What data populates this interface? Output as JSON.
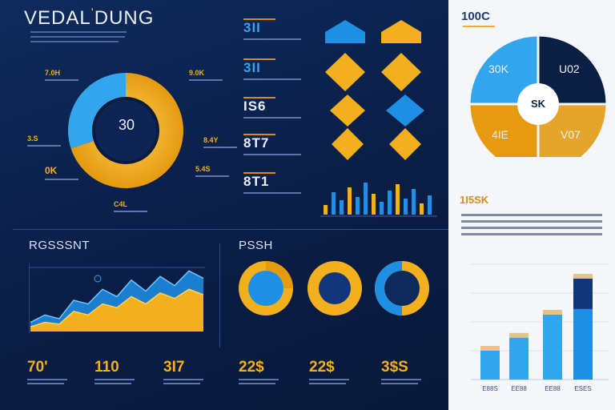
{
  "title": {
    "text": "VEDAL",
    "accent": "'",
    "text2": "DUNG"
  },
  "donut_main": {
    "center_value": "30",
    "labels": [
      "7.0H",
      "9.0K",
      "3.S",
      "0K",
      "C4L",
      "5.4S",
      "8.4Y"
    ]
  },
  "stats_col": {
    "values": [
      "3II",
      "3II",
      "IS6",
      "8T7",
      "8T1"
    ]
  },
  "progress_chart": {
    "title": "RGSSSNT",
    "bottom_values": [
      "70'",
      "110",
      "3I7",
      "22$",
      "22$",
      "3$S"
    ]
  },
  "ring_panel": {
    "title": "PSSH"
  },
  "right_panel": {
    "top_label": "100C",
    "pie_center": "SK",
    "pie_labels": [
      "30K",
      "U02",
      "4IE",
      "V07"
    ],
    "side_value": "1I5SK",
    "bar_labels": [
      "E88S",
      "EE88",
      "EE88",
      "ESES"
    ]
  },
  "colors": {
    "gold": "#f2b01e",
    "blue": "#1f8fe6",
    "navy": "#0b1f45",
    "light_blue": "#33a5ec"
  },
  "chart_data": [
    {
      "type": "pie",
      "title": "",
      "slices": [
        {
          "label": "gold",
          "value": 70
        },
        {
          "label": "blue",
          "value": 30
        }
      ],
      "center": "30"
    },
    {
      "type": "pie",
      "title": "",
      "slices": [
        {
          "label": "30K",
          "value": 25
        },
        {
          "label": "U02",
          "value": 25
        },
        {
          "label": "V07",
          "value": 25
        },
        {
          "label": "4IE",
          "value": 25
        }
      ],
      "center": "SK"
    },
    {
      "type": "area",
      "title": "RGSSSNT",
      "x": [
        0,
        1,
        2,
        3,
        4,
        5,
        6,
        7,
        8,
        9,
        10,
        11,
        12
      ],
      "series": [
        {
          "name": "",
          "values": [
            5,
            10,
            8,
            22,
            18,
            30,
            26,
            38,
            30,
            42,
            36,
            46,
            40
          ]
        },
        {
          "name": "",
          "values": [
            10,
            18,
            14,
            34,
            30,
            46,
            38,
            56,
            44,
            60,
            50,
            66,
            58
          ]
        }
      ],
      "ylim": [
        0,
        75
      ]
    },
    {
      "type": "bar",
      "title": "",
      "categories": [
        "E88S",
        "EE88",
        "EE88",
        "ESES"
      ],
      "values": [
        40,
        58,
        90,
        140
      ],
      "ylim": [
        0,
        160
      ]
    },
    {
      "type": "bar",
      "title": "",
      "categories": [
        "1",
        "2",
        "3",
        "4",
        "5",
        "6",
        "7",
        "8",
        "9",
        "10",
        "11",
        "12",
        "13",
        "14"
      ],
      "values": [
        12,
        28,
        18,
        34,
        22,
        40,
        26,
        16,
        30,
        38,
        20,
        32,
        14,
        24
      ]
    }
  ]
}
